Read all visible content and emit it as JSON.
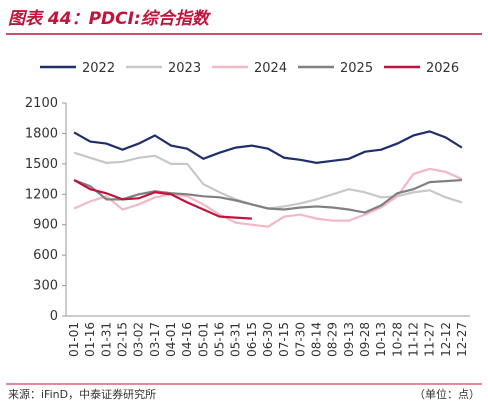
{
  "title": "图表 44：PDCI:综合指数",
  "chart_data": {
    "type": "line",
    "categories": [
      "01-01",
      "01-16",
      "01-31",
      "02-15",
      "03-02",
      "03-17",
      "04-01",
      "04-16",
      "05-01",
      "05-16",
      "05-31",
      "06-15",
      "06-30",
      "07-15",
      "07-30",
      "08-14",
      "08-29",
      "09-13",
      "09-28",
      "10-13",
      "10-28",
      "11-12",
      "11-27",
      "12-12",
      "12-27"
    ],
    "series": [
      {
        "name": "2022",
        "color": "#1f2f6b",
        "values": [
          1810,
          1720,
          1700,
          1640,
          1700,
          1780,
          1680,
          1650,
          1550,
          1610,
          1660,
          1680,
          1650,
          1560,
          1540,
          1510,
          1530,
          1550,
          1620,
          1640,
          1700,
          1780,
          1820,
          1760,
          1660
        ]
      },
      {
        "name": "2023",
        "color": "#c8c8c8",
        "values": [
          1610,
          1560,
          1510,
          1520,
          1560,
          1580,
          1500,
          1500,
          1300,
          1220,
          1150,
          1100,
          1060,
          1080,
          1110,
          1150,
          1200,
          1250,
          1220,
          1170,
          1180,
          1220,
          1240,
          1170,
          1120
        ]
      },
      {
        "name": "2024",
        "color": "#f2b8c6",
        "values": [
          1060,
          1130,
          1180,
          1050,
          1100,
          1170,
          1200,
          1180,
          1100,
          1000,
          920,
          900,
          880,
          980,
          1000,
          960,
          940,
          940,
          1000,
          1070,
          1180,
          1400,
          1450,
          1420,
          1350
        ]
      },
      {
        "name": "2025",
        "color": "#808080",
        "values": [
          1340,
          1280,
          1150,
          1150,
          1200,
          1230,
          1210,
          1200,
          1180,
          1170,
          1140,
          1100,
          1060,
          1050,
          1070,
          1080,
          1070,
          1050,
          1020,
          1090,
          1210,
          1250,
          1320,
          1330,
          1340
        ]
      },
      {
        "name": "2026",
        "color": "#c0143c",
        "values": [
          1340,
          1250,
          1210,
          1150,
          1160,
          1220,
          1200,
          1120,
          1050,
          980,
          970,
          960,
          null,
          null,
          null,
          null,
          null,
          null,
          null,
          null,
          null,
          null,
          null,
          null,
          null
        ]
      }
    ],
    "ylim": [
      0,
      2100
    ],
    "yticks": [
      0,
      300,
      600,
      900,
      1200,
      1500,
      1800,
      2100
    ]
  },
  "source": "来源：iFinD，中泰证券研究所",
  "unit": "（单位：点）"
}
